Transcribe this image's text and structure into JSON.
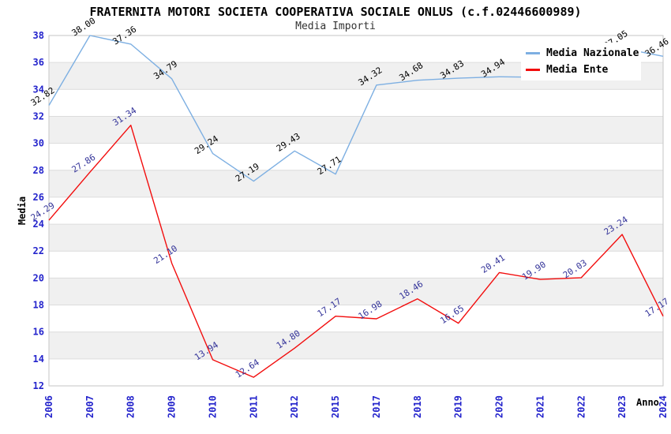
{
  "title": "FRATERNITA MOTORI SOCIETA COOPERATIVA SOCIALE ONLUS (c.f.02446600989)",
  "subtitle": "Media Importi",
  "legend": [
    {
      "label": "Media Nazionale",
      "color": "#7dafe2"
    },
    {
      "label": "Media Ente",
      "color": "#f20d0d"
    }
  ],
  "chart_data": {
    "type": "line",
    "title": "FRATERNITA MOTORI SOCIETA COOPERATIVA SOCIALE ONLUS (c.f.02446600989)",
    "subtitle": "Media Importi",
    "xlabel": "Anno",
    "ylabel": "Media",
    "ylim": [
      12,
      38
    ],
    "ytick_step": 2,
    "yticks": [
      12,
      14,
      16,
      18,
      20,
      22,
      24,
      26,
      28,
      30,
      32,
      34,
      36,
      38
    ],
    "grid": "horizontal-gridlines-with-alternating-bands",
    "legend_position": "top-right-inside",
    "categories": [
      "2006",
      "2007",
      "2008",
      "2009",
      "2010",
      "2011",
      "2012",
      "2015",
      "2017",
      "2018",
      "2019",
      "2020",
      "2021",
      "2022",
      "2023",
      "2024"
    ],
    "series": [
      {
        "name": "Media Nazionale",
        "color": "#7dafe2",
        "label_color": "#000000",
        "values": [
          32.82,
          38.0,
          37.36,
          34.79,
          29.24,
          27.19,
          29.43,
          27.71,
          34.32,
          34.68,
          34.83,
          34.94,
          34.9,
          34.8,
          37.05,
          36.46
        ],
        "labels": [
          "32.82",
          "38.00",
          "37.36",
          "34.79",
          "29.24",
          "27.19",
          "29.43",
          "27.71",
          "34.32",
          "34.68",
          "34.83",
          "34.94",
          "",
          "",
          "37.05",
          "36.46"
        ]
      },
      {
        "name": "Media Ente",
        "color": "#f20d0d",
        "label_color": "#333399",
        "values": [
          24.29,
          27.86,
          31.34,
          21.1,
          13.94,
          12.64,
          14.8,
          17.17,
          16.98,
          18.46,
          16.65,
          20.41,
          19.9,
          20.03,
          23.24,
          17.17
        ],
        "labels": [
          "24.29",
          "27.86",
          "31.34",
          "21.10",
          "13.94",
          "12.64",
          "14.80",
          "17.17",
          "16.98",
          "18.46",
          "16.65",
          "20.41",
          "19.90",
          "20.03",
          "23.24",
          "17.17"
        ]
      }
    ],
    "colors": {
      "band": "#f0f0f0",
      "gridline": "#dcdcdc",
      "plot_border": "#c6c6c6",
      "tick_text": "#2424cc",
      "axis_text": "#000000"
    }
  }
}
